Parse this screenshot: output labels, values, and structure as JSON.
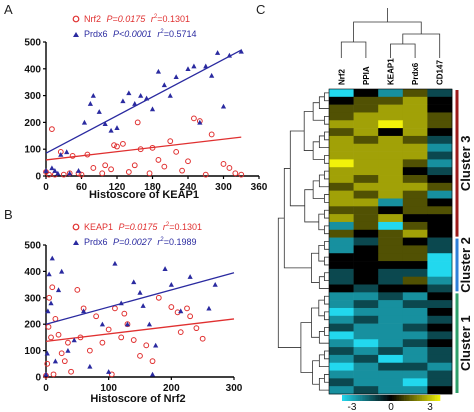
{
  "colors": {
    "red": "#e03030",
    "blue": "#2a2aa0",
    "cluster1": "#2e9e6a",
    "cluster2": "#2f7fd8",
    "cluster3": "#9b1b1b",
    "hm_yellow": "#f2f20a",
    "hm_black": "#000000",
    "hm_cyan": "#22d8ee"
  },
  "panels": {
    "a": "A",
    "b": "B",
    "c": "C"
  },
  "chart_data": [
    {
      "type": "scatter",
      "panel": "A",
      "xlabel": "Histoscore of KEAP1",
      "ylabel": "",
      "xlim": [
        0,
        360
      ],
      "ylim": [
        0,
        500
      ],
      "xticks": [
        0,
        60,
        120,
        180,
        240,
        300,
        360
      ],
      "yticks": [
        0,
        100,
        200,
        300,
        400,
        500
      ],
      "legend_position": "top-left",
      "series": [
        {
          "name": "Nrf2",
          "stat_p": "P=0.0175",
          "stat_r": "r",
          "stat_exp": "2",
          "stat_val": "=0.1301",
          "marker": "open-circle",
          "color": "#e03030",
          "fit": [
            [
              0,
              60
            ],
            [
              330,
              145
            ]
          ],
          "points": [
            [
              0,
              15
            ],
            [
              5,
              5
            ],
            [
              10,
              175
            ],
            [
              15,
              5
            ],
            [
              25,
              90
            ],
            [
              30,
              5
            ],
            [
              40,
              10
            ],
            [
              45,
              75
            ],
            [
              55,
              10
            ],
            [
              60,
              5
            ],
            [
              70,
              80
            ],
            [
              80,
              30
            ],
            [
              95,
              10
            ],
            [
              100,
              40
            ],
            [
              110,
              25
            ],
            [
              115,
              115
            ],
            [
              120,
              110
            ],
            [
              130,
              120
            ],
            [
              140,
              15
            ],
            [
              150,
              40
            ],
            [
              155,
              200
            ],
            [
              160,
              100
            ],
            [
              175,
              10
            ],
            [
              180,
              105
            ],
            [
              190,
              60
            ],
            [
              200,
              35
            ],
            [
              210,
              130
            ],
            [
              220,
              90
            ],
            [
              230,
              20
            ],
            [
              240,
              55
            ],
            [
              250,
              215
            ],
            [
              260,
              205
            ],
            [
              270,
              5
            ],
            [
              280,
              155
            ],
            [
              300,
              45
            ],
            [
              310,
              30
            ],
            [
              320,
              10
            ],
            [
              330,
              5
            ]
          ]
        },
        {
          "name": "Prdx6",
          "stat_p": "P<0.0001",
          "stat_r": "r",
          "stat_exp": "2",
          "stat_val": "=0.5714",
          "marker": "filled-triangle",
          "color": "#2a2aa0",
          "fit": [
            [
              0,
              85
            ],
            [
              330,
              470
            ]
          ],
          "points": [
            [
              0,
              20
            ],
            [
              10,
              30
            ],
            [
              15,
              20
            ],
            [
              20,
              10
            ],
            [
              25,
              80
            ],
            [
              35,
              90
            ],
            [
              40,
              10
            ],
            [
              55,
              20
            ],
            [
              65,
              200
            ],
            [
              75,
              270
            ],
            [
              80,
              300
            ],
            [
              90,
              240
            ],
            [
              100,
              195
            ],
            [
              110,
              170
            ],
            [
              120,
              180
            ],
            [
              130,
              280
            ],
            [
              140,
              310
            ],
            [
              150,
              270
            ],
            [
              160,
              300
            ],
            [
              170,
              290
            ],
            [
              180,
              250
            ],
            [
              190,
              390
            ],
            [
              200,
              340
            ],
            [
              210,
              300
            ],
            [
              220,
              370
            ],
            [
              240,
              400
            ],
            [
              250,
              410
            ],
            [
              260,
              200
            ],
            [
              270,
              410
            ],
            [
              280,
              375
            ],
            [
              290,
              460
            ],
            [
              300,
              260
            ],
            [
              310,
              450
            ],
            [
              330,
              465
            ]
          ]
        }
      ]
    },
    {
      "type": "scatter",
      "panel": "B",
      "xlabel": "Histoscore of Nrf2",
      "ylabel": "",
      "xlim": [
        0,
        300
      ],
      "ylim": [
        0,
        500
      ],
      "xticks": [
        0,
        100,
        200,
        300
      ],
      "yticks": [
        0,
        100,
        200,
        300,
        400,
        500
      ],
      "legend_position": "top-left",
      "series": [
        {
          "name": "KEAP1",
          "stat_p": "P=0.0175",
          "stat_r": "r",
          "stat_exp": "2",
          "stat_val": "=0.1301",
          "marker": "open-circle",
          "color": "#e03030",
          "fit": [
            [
              0,
              135
            ],
            [
              300,
              220
            ]
          ],
          "points": [
            [
              0,
              5
            ],
            [
              2,
              50
            ],
            [
              4,
              190
            ],
            [
              5,
              300
            ],
            [
              8,
              150
            ],
            [
              10,
              340
            ],
            [
              12,
              10
            ],
            [
              15,
              220
            ],
            [
              20,
              160
            ],
            [
              25,
              90
            ],
            [
              30,
              60
            ],
            [
              35,
              130
            ],
            [
              40,
              20
            ],
            [
              50,
              330
            ],
            [
              55,
              150
            ],
            [
              60,
              260
            ],
            [
              70,
              100
            ],
            [
              80,
              230
            ],
            [
              90,
              130
            ],
            [
              100,
              180
            ],
            [
              105,
              10
            ],
            [
              110,
              260
            ],
            [
              120,
              150
            ],
            [
              125,
              240
            ],
            [
              130,
              200
            ],
            [
              140,
              140
            ],
            [
              150,
              80
            ],
            [
              160,
              120
            ],
            [
              170,
              60
            ],
            [
              180,
              300
            ],
            [
              200,
              265
            ],
            [
              210,
              245
            ],
            [
              215,
              170
            ],
            [
              225,
              260
            ],
            [
              230,
              230
            ],
            [
              240,
              185
            ],
            [
              250,
              145
            ]
          ]
        },
        {
          "name": "Prdx6",
          "stat_p": "P=0.0027",
          "stat_r": "r",
          "stat_exp": "2",
          "stat_val": "=0.1989",
          "marker": "filled-triangle",
          "color": "#2a2aa0",
          "fit": [
            [
              0,
              200
            ],
            [
              300,
              395
            ]
          ],
          "points": [
            [
              0,
              10
            ],
            [
              2,
              90
            ],
            [
              3,
              250
            ],
            [
              5,
              390
            ],
            [
              8,
              280
            ],
            [
              10,
              450
            ],
            [
              15,
              60
            ],
            [
              20,
              330
            ],
            [
              25,
              400
            ],
            [
              35,
              100
            ],
            [
              45,
              140
            ],
            [
              60,
              250
            ],
            [
              70,
              40
            ],
            [
              90,
              200
            ],
            [
              100,
              20
            ],
            [
              110,
              430
            ],
            [
              120,
              280
            ],
            [
              130,
              200
            ],
            [
              140,
              360
            ],
            [
              150,
              320
            ],
            [
              155,
              270
            ],
            [
              165,
              200
            ],
            [
              170,
              10
            ],
            [
              175,
              120
            ],
            [
              190,
              410
            ],
            [
              200,
              350
            ],
            [
              215,
              250
            ],
            [
              230,
              380
            ],
            [
              260,
              260
            ],
            [
              270,
              350
            ]
          ]
        }
      ]
    },
    {
      "type": "heatmap",
      "panel": "C",
      "columns": [
        "Nrf2",
        "PPIA",
        "KEAP1",
        "Prdx6",
        "CD147"
      ],
      "colorbar": {
        "min_label": "-3",
        "mid_label": "0",
        "max_label": "3"
      },
      "clusters": [
        {
          "label": "Cluster 3",
          "rows": [
            0,
            18
          ]
        },
        {
          "label": "Cluster 2",
          "rows": [
            19,
            25
          ]
        },
        {
          "label": "Cluster 1",
          "rows": [
            26,
            38
          ]
        }
      ],
      "values": [
        [
          -3,
          0,
          -2,
          1,
          -1
        ],
        [
          0,
          1,
          1,
          2,
          0
        ],
        [
          1,
          1,
          2,
          2,
          0
        ],
        [
          1,
          2,
          2,
          2,
          1
        ],
        [
          2,
          2,
          3,
          2,
          1
        ],
        [
          1,
          2,
          0,
          2,
          0
        ],
        [
          2,
          1,
          2,
          1,
          -1
        ],
        [
          2,
          2,
          2,
          2,
          -2
        ],
        [
          2,
          2,
          2,
          2,
          -1
        ],
        [
          3,
          2,
          2,
          1,
          -2
        ],
        [
          2,
          2,
          2,
          0,
          -1
        ],
        [
          2,
          1,
          2,
          1,
          0
        ],
        [
          1,
          2,
          2,
          2,
          1
        ],
        [
          2,
          1,
          2,
          1,
          -2
        ],
        [
          2,
          2,
          -2,
          1,
          0
        ],
        [
          1,
          1,
          0,
          1,
          1
        ],
        [
          2,
          1,
          2,
          0,
          0
        ],
        [
          -2,
          1,
          -3,
          1,
          0
        ],
        [
          1,
          0,
          1,
          2,
          0
        ],
        [
          -2,
          -1,
          1,
          0,
          -1
        ],
        [
          -2,
          0,
          1,
          1,
          -1
        ],
        [
          0,
          0,
          1,
          1,
          -3
        ],
        [
          0,
          0,
          0,
          0,
          -3
        ],
        [
          -1,
          0,
          -1,
          -1,
          -3
        ],
        [
          -1,
          0,
          -1,
          1,
          -2
        ],
        [
          0,
          -1,
          0,
          0,
          -1
        ],
        [
          -2,
          -2,
          -1,
          -2,
          0
        ],
        [
          -2,
          -1,
          -2,
          -1,
          -1
        ],
        [
          -3,
          -2,
          -2,
          -2,
          0
        ],
        [
          -2,
          -1,
          -2,
          -2,
          -1
        ],
        [
          -1,
          -2,
          -2,
          -1,
          0
        ],
        [
          -3,
          -2,
          -2,
          -2,
          -1
        ],
        [
          -2,
          -3,
          -2,
          -1,
          0
        ],
        [
          -1,
          -2,
          -1,
          -2,
          -1
        ],
        [
          -2,
          -1,
          -3,
          -2,
          -1
        ],
        [
          -3,
          -2,
          -1,
          -1,
          -2
        ],
        [
          -2,
          -2,
          -2,
          -2,
          -1
        ],
        [
          -1,
          -2,
          -2,
          -3,
          -1
        ],
        [
          -2,
          -1,
          -2,
          -2,
          0
        ]
      ]
    }
  ]
}
